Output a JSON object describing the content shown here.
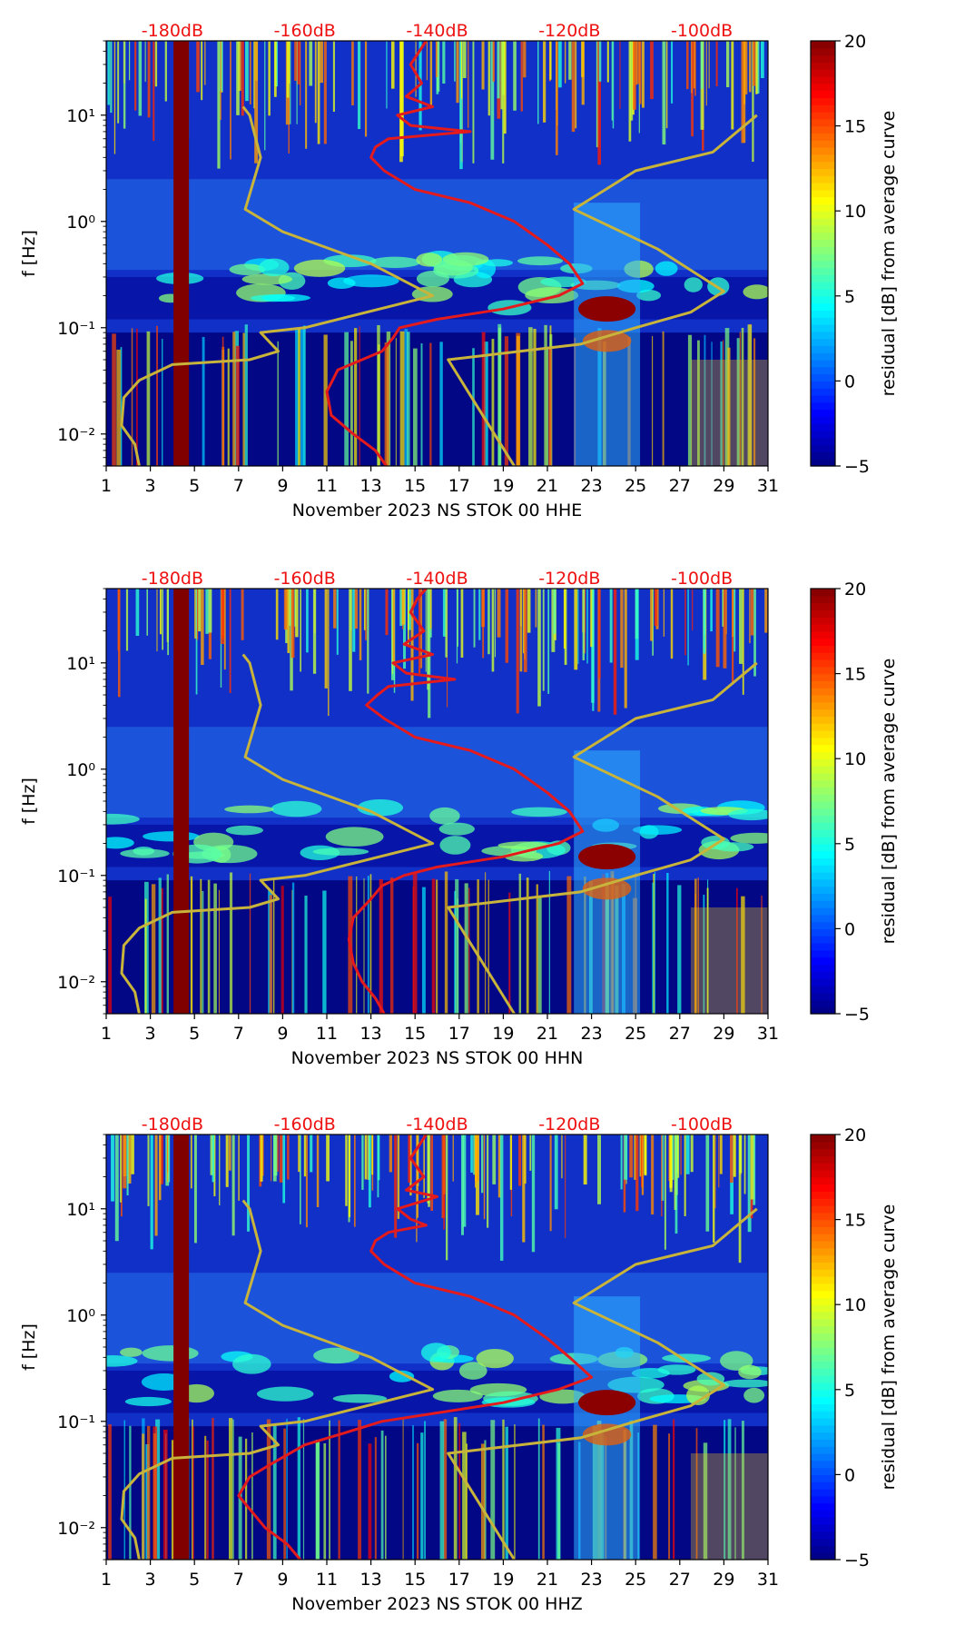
{
  "chart_data": [
    {
      "type": "heatmap",
      "xlabel": "November 2023 NS STOK 00 HHE",
      "ylabel": "f [Hz]",
      "colorbar_label": "residual [dB] from average curve",
      "x_ticks": [
        1,
        3,
        5,
        7,
        9,
        11,
        13,
        15,
        17,
        19,
        21,
        23,
        25,
        27,
        29,
        31
      ],
      "xlim": [
        1,
        31
      ],
      "y_scale": "log",
      "ylim": [
        0.005,
        50
      ],
      "y_ticks": [
        {
          "value": 0.01,
          "label": "10⁻²"
        },
        {
          "value": 0.1,
          "label": "10⁻¹"
        },
        {
          "value": 1,
          "label": "10⁰"
        },
        {
          "value": 10,
          "label": "10¹"
        }
      ],
      "colorbar_range": [
        -5,
        20
      ],
      "colorbar_ticks": [
        -5,
        0,
        5,
        10,
        15,
        20
      ],
      "colormap": "jet",
      "db_scale_labels": [
        "-180dB",
        "-160dB",
        "-140dB",
        "-120dB",
        "-100dB"
      ],
      "db_scale_color": "#ee1111",
      "series": [
        {
          "color": "#e41a1c",
          "points": [
            [
              15.5,
              50
            ],
            [
              15.2,
              40
            ],
            [
              14.8,
              30
            ],
            [
              15.3,
              20
            ],
            [
              14.6,
              15
            ],
            [
              15.8,
              12
            ],
            [
              14.2,
              10
            ],
            [
              14.8,
              8
            ],
            [
              17.5,
              7
            ],
            [
              13.8,
              6
            ],
            [
              13.2,
              5
            ],
            [
              13.0,
              4
            ],
            [
              13.6,
              3
            ],
            [
              15.0,
              2
            ],
            [
              17.5,
              1.5
            ],
            [
              19.5,
              1.0
            ],
            [
              21.0,
              0.6
            ],
            [
              22.0,
              0.4
            ],
            [
              22.6,
              0.26
            ],
            [
              21.5,
              0.2
            ],
            [
              19.0,
              0.15
            ],
            [
              16.0,
              0.12
            ],
            [
              14.3,
              0.1
            ],
            [
              14.0,
              0.08
            ],
            [
              13.5,
              0.06
            ],
            [
              11.5,
              0.04
            ],
            [
              11.0,
              0.025
            ],
            [
              11.2,
              0.015
            ],
            [
              12.2,
              0.01
            ],
            [
              13.2,
              0.007
            ],
            [
              13.7,
              0.005
            ]
          ]
        },
        {
          "color": "#c8b43a",
          "points": [
            [
              2.5,
              0.005
            ],
            [
              2.3,
              0.008
            ],
            [
              1.7,
              0.012
            ],
            [
              1.8,
              0.022
            ],
            [
              2.5,
              0.032
            ],
            [
              4.0,
              0.045
            ],
            [
              7.5,
              0.05
            ],
            [
              8.8,
              0.06
            ],
            [
              8.0,
              0.09
            ],
            [
              10.0,
              0.1
            ],
            [
              15.8,
              0.2
            ],
            [
              13.0,
              0.4
            ],
            [
              9.0,
              0.8
            ],
            [
              7.3,
              1.3
            ],
            [
              8.0,
              4
            ],
            [
              7.5,
              10
            ],
            [
              7.2,
              12
            ]
          ]
        },
        {
          "color": "#c8b43a",
          "points": [
            [
              19.5,
              0.005
            ],
            [
              16.5,
              0.05
            ],
            [
              22.5,
              0.07
            ],
            [
              25.0,
              0.1
            ],
            [
              27.5,
              0.14
            ],
            [
              29.0,
              0.22
            ],
            [
              26.0,
              0.55
            ],
            [
              22.2,
              1.3
            ],
            [
              25.0,
              3.0
            ],
            [
              28.5,
              4.5
            ],
            [
              30.5,
              10
            ]
          ]
        }
      ]
    },
    {
      "type": "heatmap",
      "xlabel": "November 2023 NS STOK 00 HHN",
      "ylabel": "f [Hz]",
      "colorbar_label": "residual [dB] from average curve",
      "x_ticks": [
        1,
        3,
        5,
        7,
        9,
        11,
        13,
        15,
        17,
        19,
        21,
        23,
        25,
        27,
        29,
        31
      ],
      "xlim": [
        1,
        31
      ],
      "y_scale": "log",
      "ylim": [
        0.005,
        50
      ],
      "y_ticks": [
        {
          "value": 0.01,
          "label": "10⁻²"
        },
        {
          "value": 0.1,
          "label": "10⁻¹"
        },
        {
          "value": 1,
          "label": "10⁰"
        },
        {
          "value": 10,
          "label": "10¹"
        }
      ],
      "colorbar_range": [
        -5,
        20
      ],
      "colorbar_ticks": [
        -5,
        0,
        5,
        10,
        15,
        20
      ],
      "colormap": "jet",
      "db_scale_labels": [
        "-180dB",
        "-160dB",
        "-140dB",
        "-120dB",
        "-100dB"
      ],
      "db_scale_color": "#ee1111",
      "series": [
        {
          "color": "#e41a1c",
          "points": [
            [
              15.5,
              50
            ],
            [
              15.1,
              40
            ],
            [
              14.8,
              30
            ],
            [
              15.4,
              20
            ],
            [
              14.5,
              15
            ],
            [
              15.8,
              12
            ],
            [
              14.0,
              10
            ],
            [
              14.6,
              8
            ],
            [
              16.8,
              7
            ],
            [
              13.8,
              6
            ],
            [
              13.3,
              5
            ],
            [
              12.8,
              4
            ],
            [
              13.6,
              3
            ],
            [
              15.0,
              2
            ],
            [
              17.5,
              1.5
            ],
            [
              19.5,
              1.0
            ],
            [
              21.0,
              0.6
            ],
            [
              22.0,
              0.4
            ],
            [
              22.6,
              0.26
            ],
            [
              21.5,
              0.2
            ],
            [
              19.0,
              0.15
            ],
            [
              16.0,
              0.12
            ],
            [
              14.5,
              0.1
            ],
            [
              13.5,
              0.08
            ],
            [
              13.0,
              0.06
            ],
            [
              12.2,
              0.04
            ],
            [
              12.0,
              0.025
            ],
            [
              12.2,
              0.015
            ],
            [
              12.6,
              0.01
            ],
            [
              13.2,
              0.007
            ],
            [
              13.6,
              0.005
            ]
          ]
        },
        {
          "color": "#c8b43a",
          "points": [
            [
              2.5,
              0.005
            ],
            [
              2.3,
              0.008
            ],
            [
              1.7,
              0.012
            ],
            [
              1.8,
              0.022
            ],
            [
              2.5,
              0.032
            ],
            [
              4.0,
              0.045
            ],
            [
              7.5,
              0.05
            ],
            [
              8.8,
              0.06
            ],
            [
              8.0,
              0.09
            ],
            [
              10.0,
              0.1
            ],
            [
              15.8,
              0.2
            ],
            [
              13.0,
              0.4
            ],
            [
              9.0,
              0.8
            ],
            [
              7.3,
              1.3
            ],
            [
              8.0,
              4
            ],
            [
              7.5,
              10
            ],
            [
              7.2,
              12
            ]
          ]
        },
        {
          "color": "#c8b43a",
          "points": [
            [
              19.5,
              0.005
            ],
            [
              16.5,
              0.05
            ],
            [
              22.5,
              0.07
            ],
            [
              25.0,
              0.1
            ],
            [
              27.5,
              0.14
            ],
            [
              29.0,
              0.22
            ],
            [
              26.0,
              0.55
            ],
            [
              22.2,
              1.3
            ],
            [
              25.0,
              3.0
            ],
            [
              28.5,
              4.5
            ],
            [
              30.5,
              10
            ]
          ]
        }
      ]
    },
    {
      "type": "heatmap",
      "xlabel": "November 2023 NS STOK 00 HHZ",
      "ylabel": "f [Hz]",
      "colorbar_label": "residual [dB] from average curve",
      "x_ticks": [
        1,
        3,
        5,
        7,
        9,
        11,
        13,
        15,
        17,
        19,
        21,
        23,
        25,
        27,
        29,
        31
      ],
      "xlim": [
        1,
        31
      ],
      "y_scale": "log",
      "ylim": [
        0.005,
        50
      ],
      "y_ticks": [
        {
          "value": 0.01,
          "label": "10⁻²"
        },
        {
          "value": 0.1,
          "label": "10⁻¹"
        },
        {
          "value": 1,
          "label": "10⁰"
        },
        {
          "value": 10,
          "label": "10¹"
        }
      ],
      "colorbar_range": [
        -5,
        20
      ],
      "colorbar_ticks": [
        -5,
        0,
        5,
        10,
        15,
        20
      ],
      "colormap": "jet",
      "db_scale_labels": [
        "-180dB",
        "-160dB",
        "-140dB",
        "-120dB",
        "-100dB"
      ],
      "db_scale_color": "#ee1111",
      "series": [
        {
          "color": "#e41a1c",
          "points": [
            [
              15.5,
              50
            ],
            [
              15.2,
              40
            ],
            [
              14.8,
              30
            ],
            [
              15.4,
              20
            ],
            [
              14.6,
              15
            ],
            [
              16.0,
              13
            ],
            [
              14.2,
              10
            ],
            [
              14.8,
              8
            ],
            [
              15.5,
              7
            ],
            [
              13.8,
              6
            ],
            [
              13.2,
              5
            ],
            [
              13.0,
              4
            ],
            [
              13.6,
              3
            ],
            [
              15.0,
              2
            ],
            [
              17.5,
              1.5
            ],
            [
              19.5,
              1.0
            ],
            [
              21.0,
              0.6
            ],
            [
              22.0,
              0.4
            ],
            [
              23.0,
              0.26
            ],
            [
              21.5,
              0.2
            ],
            [
              19.0,
              0.15
            ],
            [
              16.0,
              0.12
            ],
            [
              13.5,
              0.1
            ],
            [
              12.0,
              0.08
            ],
            [
              10.0,
              0.06
            ],
            [
              8.5,
              0.04
            ],
            [
              7.5,
              0.03
            ],
            [
              7.0,
              0.02
            ],
            [
              7.5,
              0.015
            ],
            [
              8.2,
              0.01
            ],
            [
              9.2,
              0.007
            ],
            [
              9.8,
              0.005
            ]
          ]
        },
        {
          "color": "#c8b43a",
          "points": [
            [
              2.5,
              0.005
            ],
            [
              2.3,
              0.008
            ],
            [
              1.7,
              0.012
            ],
            [
              1.8,
              0.022
            ],
            [
              2.5,
              0.032
            ],
            [
              4.0,
              0.045
            ],
            [
              7.5,
              0.05
            ],
            [
              8.8,
              0.06
            ],
            [
              8.0,
              0.09
            ],
            [
              10.0,
              0.1
            ],
            [
              15.8,
              0.2
            ],
            [
              13.0,
              0.4
            ],
            [
              9.0,
              0.8
            ],
            [
              7.3,
              1.3
            ],
            [
              8.0,
              4
            ],
            [
              7.5,
              10
            ],
            [
              7.2,
              12
            ]
          ]
        },
        {
          "color": "#c8b43a",
          "points": [
            [
              19.5,
              0.005
            ],
            [
              16.5,
              0.05
            ],
            [
              22.5,
              0.07
            ],
            [
              25.0,
              0.1
            ],
            [
              27.5,
              0.14
            ],
            [
              29.0,
              0.22
            ],
            [
              26.0,
              0.55
            ],
            [
              22.2,
              1.3
            ],
            [
              25.0,
              3.0
            ],
            [
              28.5,
              4.5
            ],
            [
              30.5,
              10
            ]
          ]
        }
      ]
    }
  ]
}
